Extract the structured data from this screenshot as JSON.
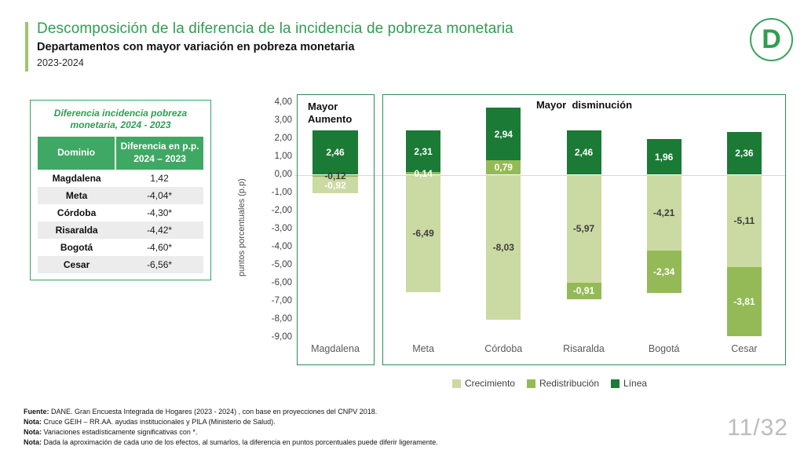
{
  "slide": {
    "title": "Descomposición de la diferencia de la incidencia de pobreza monetaria",
    "subtitle": "Departamentos con mayor variación en pobreza monetaria",
    "period": "2023-2024",
    "page_number": "11/32",
    "logo_letter": "D"
  },
  "colors": {
    "title_green": "#2f9e51",
    "accent_bar": "#9fc46f",
    "table_header_green": "#3fa864",
    "table_border_green": "#3aa35e",
    "panel_border_green": "#2e8b57",
    "crecimiento": "#cbd9a3",
    "redistribucion": "#94ba58",
    "linea": "#1b7a35"
  },
  "table": {
    "title": "Diferencia incidencia pobreza monetaria, 2024 - 2023",
    "columns": [
      "Dominio",
      "Diferencia en p.p. 2024 – 2023"
    ],
    "rows": [
      {
        "dominio": "Magdalena",
        "diferencia": "1,42"
      },
      {
        "dominio": "Meta",
        "diferencia": "-4,04*"
      },
      {
        "dominio": "Córdoba",
        "diferencia": "-4,30*"
      },
      {
        "dominio": "Risaralda",
        "diferencia": "-4,42*"
      },
      {
        "dominio": "Bogotá",
        "diferencia": "-4,60*"
      },
      {
        "dominio": "Cesar",
        "diferencia": "-6,56*"
      }
    ]
  },
  "chart_data": {
    "type": "bar",
    "stacked": true,
    "ylabel": "puntos porcentuales (p.p)",
    "ylim": [
      -9,
      4
    ],
    "ytick_values": [
      4,
      3,
      2,
      1,
      0,
      -1,
      -2,
      -3,
      -4,
      -5,
      -6,
      -7,
      -8,
      -9
    ],
    "grid": "zero-line-only",
    "legend_position": "bottom",
    "legend": [
      {
        "series": "crecimiento",
        "label": "Crecimiento"
      },
      {
        "series": "redistribucion",
        "label": "Redistribución"
      },
      {
        "series": "linea",
        "label": "Línea"
      }
    ],
    "panels": [
      {
        "title": "Mayor Aumento",
        "bars": [
          {
            "category": "Magdalena",
            "segments": [
              {
                "series": "linea",
                "value": 2.46,
                "label": "2,46",
                "label_style": "light"
              },
              {
                "series": "redistribucion",
                "value": -0.12,
                "label": "-0,12",
                "label_style": "dark"
              },
              {
                "series": "crecimiento",
                "value": -0.92,
                "label": "-0,92",
                "label_style": "light"
              }
            ]
          }
        ]
      },
      {
        "title": "Mayor  disminución",
        "bars": [
          {
            "category": "Meta",
            "segments": [
              {
                "series": "redistribucion",
                "value": 0.14,
                "label": "0,14",
                "label_style": "light"
              },
              {
                "series": "linea",
                "value": 2.31,
                "label": "2,31",
                "label_style": "light"
              },
              {
                "series": "crecimiento",
                "value": -6.49,
                "label": "-6,49",
                "label_style": "dark"
              }
            ]
          },
          {
            "category": "Córdoba",
            "segments": [
              {
                "series": "redistribucion",
                "value": 0.79,
                "label": "0,79",
                "label_style": "light"
              },
              {
                "series": "linea",
                "value": 2.94,
                "label": "2,94",
                "label_style": "light"
              },
              {
                "series": "crecimiento",
                "value": -8.03,
                "label": "-8,03",
                "label_style": "dark"
              }
            ]
          },
          {
            "category": "Risaralda",
            "segments": [
              {
                "series": "linea",
                "value": 2.46,
                "label": "2,46",
                "label_style": "light"
              },
              {
                "series": "crecimiento",
                "value": -5.97,
                "label": "-5,97",
                "label_style": "dark"
              },
              {
                "series": "redistribucion",
                "value": -0.91,
                "label": "-0,91",
                "label_style": "light"
              }
            ]
          },
          {
            "category": "Bogotá",
            "segments": [
              {
                "series": "linea",
                "value": 1.96,
                "label": "1,96",
                "label_style": "light"
              },
              {
                "series": "crecimiento",
                "value": -4.21,
                "label": "-4,21",
                "label_style": "dark"
              },
              {
                "series": "redistribucion",
                "value": -2.34,
                "label": "-2,34",
                "label_style": "light"
              }
            ]
          },
          {
            "category": "Cesar",
            "segments": [
              {
                "series": "linea",
                "value": 2.36,
                "label": "2,36",
                "label_style": "light"
              },
              {
                "series": "crecimiento",
                "value": -5.11,
                "label": "-5,11",
                "label_style": "dark"
              },
              {
                "series": "redistribucion",
                "value": -3.81,
                "label": "-3,81",
                "label_style": "light"
              }
            ]
          }
        ]
      }
    ]
  },
  "notes": [
    {
      "label": "Fuente:",
      "text": " DANE. Gran Encuesta Integrada de Hogares (2023 - 2024) , con base en proyecciones del CNPV 2018."
    },
    {
      "label": "Nota:",
      "text": " Cruce GEIH – RR.AA. ayudas institucionales y PILA (Ministerio de Salud)."
    },
    {
      "label": "Nota:",
      "text": " Variaciones estadísticamente significativas con *."
    },
    {
      "label": "Nota:",
      "text": " Dada la aproximación de cada uno de los efectos, al sumarlos, la diferencia en puntos porcentuales puede diferir ligeramente."
    }
  ]
}
